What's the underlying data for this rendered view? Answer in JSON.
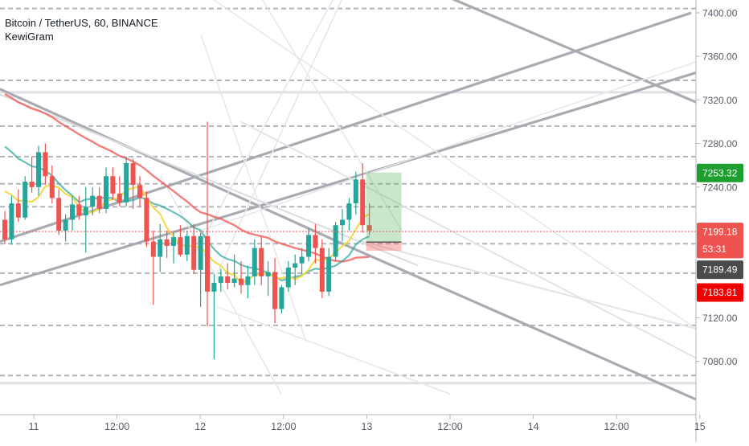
{
  "legend": {
    "symbol": "Bitcoin / TetherUS, 60, BINANCE",
    "indicator": "KewiGram"
  },
  "chart_data": {
    "type": "candlestick",
    "x_axis_labels": [
      "11",
      "12:00",
      "12",
      "12:00",
      "13",
      "12:00",
      "14",
      "12:00",
      "15"
    ],
    "y_axis_labels": [
      "7400.00",
      "7360.00",
      "7320.00",
      "7280.00",
      "7240.00",
      "7120.00",
      "7080.00"
    ],
    "ylim": [
      7050,
      7420
    ],
    "price_tags": [
      {
        "label": "7253.32",
        "value": 7253.32,
        "color": "#1e9e2f"
      },
      {
        "label": "7199.18",
        "value": 7199.18,
        "color": "#ef5350"
      },
      {
        "label": "53:31",
        "value": 7183.5,
        "color": "#ef5350"
      },
      {
        "label": "7189.49",
        "value": 7164.5,
        "color": "#4a4a4a"
      },
      {
        "label": "7183.81",
        "value": 7143.5,
        "color": "#f00000"
      }
    ],
    "horizontal_levels": [
      7404,
      7338,
      7296,
      7268,
      7243,
      7222,
      7188,
      7161,
      7113,
      7067
    ],
    "current_price": 7199.18,
    "long_position": {
      "entry": 7189.49,
      "target": 7253.32,
      "stop": 7183.81
    },
    "candles": [
      [
        7210,
        7218,
        7188,
        7192
      ],
      [
        7192,
        7232,
        7187,
        7225
      ],
      [
        7225,
        7238,
        7208,
        7212
      ],
      [
        7212,
        7250,
        7210,
        7245
      ],
      [
        7245,
        7268,
        7235,
        7240
      ],
      [
        7240,
        7278,
        7232,
        7272
      ],
      [
        7272,
        7280,
        7242,
        7250
      ],
      [
        7250,
        7260,
        7225,
        7230
      ],
      [
        7230,
        7238,
        7196,
        7200
      ],
      [
        7200,
        7215,
        7190,
        7210
      ],
      [
        7210,
        7232,
        7200,
        7224
      ],
      [
        7224,
        7232,
        7210,
        7214
      ],
      [
        7214,
        7240,
        7180,
        7222
      ],
      [
        7222,
        7240,
        7214,
        7232
      ],
      [
        7232,
        7240,
        7216,
        7220
      ],
      [
        7220,
        7258,
        7216,
        7250
      ],
      [
        7250,
        7258,
        7228,
        7234
      ],
      [
        7234,
        7250,
        7222,
        7226
      ],
      [
        7226,
        7268,
        7222,
        7262
      ],
      [
        7262,
        7266,
        7220,
        7242
      ],
      [
        7242,
        7250,
        7222,
        7230
      ],
      [
        7230,
        7236,
        7185,
        7190
      ],
      [
        7190,
        7200,
        7132,
        7176
      ],
      [
        7176,
        7206,
        7162,
        7192
      ],
      [
        7192,
        7200,
        7175,
        7186
      ],
      [
        7186,
        7198,
        7170,
        7194
      ],
      [
        7194,
        7205,
        7176,
        7178
      ],
      [
        7178,
        7200,
        7172,
        7195
      ],
      [
        7195,
        7206,
        7160,
        7164
      ],
      [
        7164,
        7198,
        7130,
        7195
      ],
      [
        7195,
        7300,
        7112,
        7144
      ],
      [
        7144,
        7160,
        7082,
        7152
      ],
      [
        7152,
        7165,
        7144,
        7158
      ],
      [
        7158,
        7170,
        7146,
        7152
      ],
      [
        7152,
        7178,
        7148,
        7156
      ],
      [
        7156,
        7172,
        7142,
        7150
      ],
      [
        7150,
        7168,
        7138,
        7158
      ],
      [
        7158,
        7192,
        7150,
        7184
      ],
      [
        7184,
        7195,
        7150,
        7158
      ],
      [
        7158,
        7172,
        7140,
        7162
      ],
      [
        7162,
        7175,
        7115,
        7128
      ],
      [
        7128,
        7150,
        7124,
        7148
      ],
      [
        7148,
        7172,
        7144,
        7166
      ],
      [
        7166,
        7178,
        7150,
        7170
      ],
      [
        7170,
        7184,
        7160,
        7176
      ],
      [
        7176,
        7202,
        7172,
        7196
      ],
      [
        7196,
        7206,
        7170,
        7184
      ],
      [
        7184,
        7192,
        7138,
        7144
      ],
      [
        7144,
        7184,
        7140,
        7176
      ],
      [
        7176,
        7208,
        7172,
        7205
      ],
      [
        7205,
        7220,
        7190,
        7210
      ],
      [
        7210,
        7230,
        7200,
        7225
      ],
      [
        7225,
        7254,
        7215,
        7247
      ],
      [
        7247,
        7262,
        7198,
        7205
      ],
      [
        7205,
        7225,
        7196,
        7200
      ]
    ]
  }
}
